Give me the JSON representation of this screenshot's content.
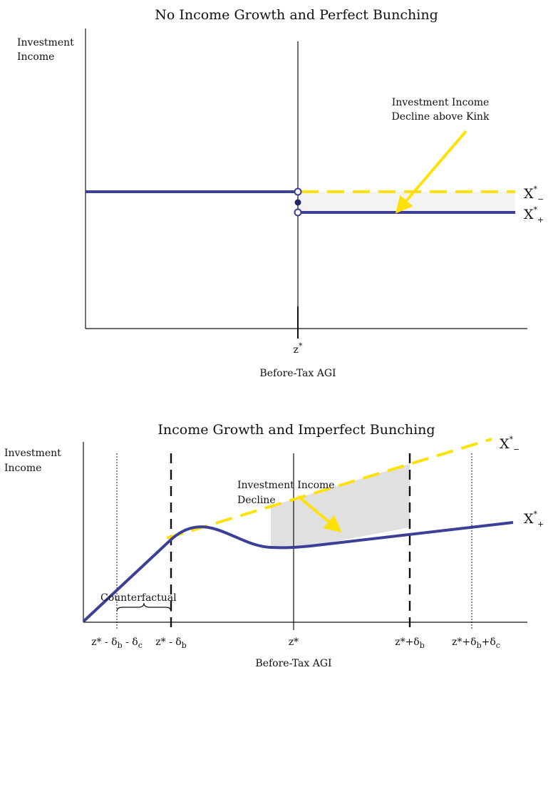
{
  "panel1": {
    "title": "No Income Growth and Perfect Bunching",
    "ylabel_line1": "Investment",
    "ylabel_line2": "Income",
    "xlabel": "Before-Tax AGI",
    "tick_z": "z",
    "tick_z_sup": "*",
    "annotation_line1": "Investment Income",
    "annotation_line2": "Decline above Kink",
    "curve_minus": {
      "base": "X",
      "sup": "*",
      "sub": "−"
    },
    "curve_plus": {
      "base": "X",
      "sup": "*",
      "sub": "+"
    }
  },
  "panel2": {
    "title": "Income Growth and Imperfect Bunching",
    "ylabel_line1": "Investment",
    "ylabel_line2": "Income",
    "xlabel": "Before-Tax AGI",
    "annotation_line1": "Investment Income",
    "annotation_line2": "Decline",
    "counterfactual_label": "Counterfactual",
    "ticks": [
      {
        "text": "z* - δ",
        "sub": "b",
        "rest": " - δ",
        "sub2": "c"
      },
      {
        "text": "z* - δ",
        "sub": "b",
        "rest": "",
        "sub2": ""
      },
      {
        "text": "z*",
        "sub": "",
        "rest": "",
        "sub2": ""
      },
      {
        "text": "z*+δ",
        "sub": "b",
        "rest": "",
        "sub2": ""
      },
      {
        "text": "z*+δ",
        "sub": "b",
        "rest": "+δ",
        "sub2": "c"
      }
    ],
    "curve_minus": {
      "base": "X",
      "sup": "*",
      "sub": "−"
    },
    "curve_plus": {
      "base": "X",
      "sup": "*",
      "sub": "+"
    }
  },
  "colors": {
    "blue": "#3b3f96",
    "yellow": "#ffe10a",
    "shade1": "#f3f3f3",
    "shade2": "#e0e0e0"
  }
}
